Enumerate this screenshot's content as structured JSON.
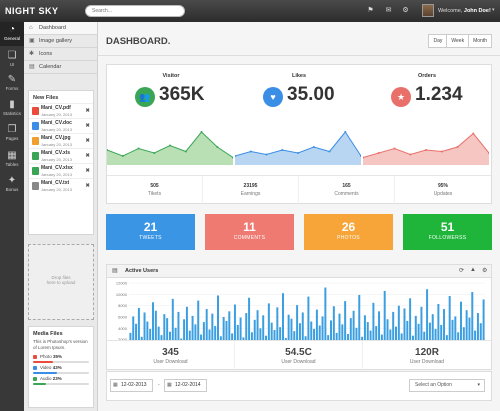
{
  "app": {
    "title": "NIGHT SKY"
  },
  "header": {
    "search_placeholder": "Search...",
    "notifications": [
      {
        "icon": "bell-icon",
        "glyph": "⚑",
        "badge": ""
      },
      {
        "icon": "mail-icon",
        "glyph": "✉",
        "badge": ""
      },
      {
        "icon": "gear-icon",
        "glyph": "⚙",
        "badge": ""
      }
    ],
    "welcome_prefix": "Welcome,",
    "user_name": "John Doe!"
  },
  "iconbar": [
    {
      "label": "General",
      "glyph": "◔",
      "icon": "dashboard-gauge-icon"
    },
    {
      "label": "UI",
      "glyph": "❏",
      "icon": "ui-icon"
    },
    {
      "label": "Forms",
      "glyph": "✎",
      "icon": "forms-icon"
    },
    {
      "label": "Statistics",
      "glyph": "▮",
      "icon": "statistics-icon"
    },
    {
      "label": "Pages",
      "glyph": "❐",
      "icon": "pages-icon"
    },
    {
      "label": "Tables",
      "glyph": "▦",
      "icon": "tables-icon"
    },
    {
      "label": "Bonus",
      "glyph": "✦",
      "icon": "bonus-icon"
    }
  ],
  "submenu": [
    {
      "label": "Dashboard",
      "glyph": "⌂",
      "icon": "home-icon"
    },
    {
      "label": "Image gallery",
      "glyph": "▣",
      "icon": "gallery-icon"
    },
    {
      "label": "Icons",
      "glyph": "✱",
      "icon": "icons-icon"
    },
    {
      "label": "Calendar",
      "glyph": "▤",
      "icon": "calendar-icon"
    }
  ],
  "new_files": {
    "title": "New Files",
    "items": [
      {
        "name": "Mani_CV.pdf",
        "date": "January 20, 2013",
        "color": "#e94b3c"
      },
      {
        "name": "Mani_CV.doc",
        "date": "January 20, 2013",
        "color": "#3a8ee6"
      },
      {
        "name": "Mani_CV.jpg",
        "date": "January 20, 2013",
        "color": "#f0a030"
      },
      {
        "name": "Mani_CV.xls",
        "date": "January 20, 2013",
        "color": "#3aa655"
      },
      {
        "name": "Mani_CV.xlsx",
        "date": "January 20, 2013",
        "color": "#3aa655"
      },
      {
        "name": "Mani_CV.txt",
        "date": "January 20, 2013",
        "color": "#888888"
      }
    ]
  },
  "dropzone": {
    "line1": "Drop files",
    "line2": "here to upload"
  },
  "media_files": {
    "title": "Media Files",
    "description": "This is Photoshop's version of Lorem Ipsum.",
    "items": [
      {
        "label": "Photo",
        "percent": "35%",
        "value": 0.35,
        "color": "#e94b3c"
      },
      {
        "label": "Video",
        "percent": "43%",
        "value": 0.43,
        "color": "#3a8ee6"
      },
      {
        "label": "Audio",
        "percent": "23%",
        "value": 0.23,
        "color": "#3aa655"
      }
    ]
  },
  "main": {
    "title": "DASHBOARD.",
    "range_buttons": [
      "Day",
      "Week",
      "Month"
    ]
  },
  "stats": [
    {
      "label": "Visitor",
      "value": "365K",
      "icon": "users-icon",
      "glyph": "👥",
      "color": "#3aa655",
      "fill": "#b9dfb5",
      "stroke": "#3aa655",
      "series": [
        10,
        6,
        11,
        8,
        13,
        9,
        22,
        12,
        5
      ]
    },
    {
      "label": "Likes",
      "value": "35.00",
      "icon": "heart-icon",
      "glyph": "♥",
      "color": "#3a8ee6",
      "fill": "#b8d5f2",
      "stroke": "#3a8ee6",
      "series": [
        6,
        9,
        7,
        10,
        8,
        12,
        9,
        22,
        6
      ]
    },
    {
      "label": "Orders",
      "value": "1.234",
      "icon": "star-icon",
      "glyph": "★",
      "color": "#e9706a",
      "fill": "#f6c6c2",
      "stroke": "#e9706a",
      "series": [
        5,
        8,
        11,
        7,
        10,
        9,
        12,
        21,
        8
      ]
    }
  ],
  "stat_footer": [
    {
      "value": "505",
      "label": "Tikets"
    },
    {
      "value": "23195",
      "label": "Earnings"
    },
    {
      "value": "165",
      "label": "Comments"
    },
    {
      "value": "95%",
      "label": "Updates"
    }
  ],
  "tiles": [
    {
      "value": "21",
      "label": "TWEETS",
      "color": "#3a95e4"
    },
    {
      "value": "11",
      "label": "COMMENTS",
      "color": "#ef7a72"
    },
    {
      "value": "26",
      "label": "PHOTOS",
      "color": "#f7a538"
    },
    {
      "value": "51",
      "label": "FOLLOWERSS",
      "color": "#1eb53a"
    }
  ],
  "active_users": {
    "title": "Active Users",
    "chart_data": {
      "type": "bar",
      "title": "Active Users",
      "ylim": [
        0,
        12000
      ],
      "yticks": [
        "12000",
        "10000",
        "8000",
        "6000",
        "4000",
        "2000",
        "0"
      ],
      "values": [
        3200,
        6100,
        4800,
        7600,
        2500,
        6800,
        5200,
        3900,
        8600,
        7100,
        4300,
        2800,
        6500,
        5800,
        3400,
        9200,
        4100,
        6900,
        2200,
        5600,
        7800,
        3600,
        6200,
        4700,
        8900,
        2900,
        5100,
        7400,
        3800,
        6600,
        4400,
        9800,
        2600,
        6000,
        5300,
        7000,
        3100,
        8200,
        4600,
        5900,
        2400,
        6700,
        9400,
        3300,
        5500,
        7200,
        4000,
        6300,
        2700,
        8400,
        5000,
        3700,
        7700,
        4200,
        10200,
        2300,
        6400,
        5700,
        3500,
        8100,
        4900,
        6800,
        2600,
        9600,
        5200,
        3900,
        7300,
        4500,
        6100,
        11200,
        2800,
        5400,
        7900,
        3200,
        6600,
        4700,
        8800,
        3000,
        5800,
        7100,
        4100,
        9900,
        2500,
        6300,
        5100,
        3600,
        8500,
        4400,
        7000,
        2900,
        10600,
        5600,
        3800,
        6900,
        4300,
        8000,
        3100,
        7500,
        5300,
        9300,
        2700,
        6200,
        4800,
        7800,
        3400,
        10900,
        5000,
        6500,
        3900,
        8300,
        4600,
        7400,
        2800,
        9700,
        5500,
        6100,
        3300,
        8700,
        4200,
        7200,
        5900,
        10400,
        3600,
        6700,
        4900,
        9100
      ]
    },
    "tools": [
      {
        "icon": "refresh-icon",
        "glyph": "⟳"
      },
      {
        "icon": "warning-icon",
        "glyph": "▲"
      },
      {
        "icon": "gear-icon",
        "glyph": "⚙"
      }
    ]
  },
  "downloads": [
    {
      "value": "345",
      "label": "User Download"
    },
    {
      "value": "54.5C",
      "label": "User Download"
    },
    {
      "value": "120R",
      "label": "User Download"
    }
  ],
  "filters": {
    "date_from": "12-02-2013",
    "date_to": "12-02-2014",
    "separator": "-",
    "select_placeholder": "Select an Option"
  }
}
